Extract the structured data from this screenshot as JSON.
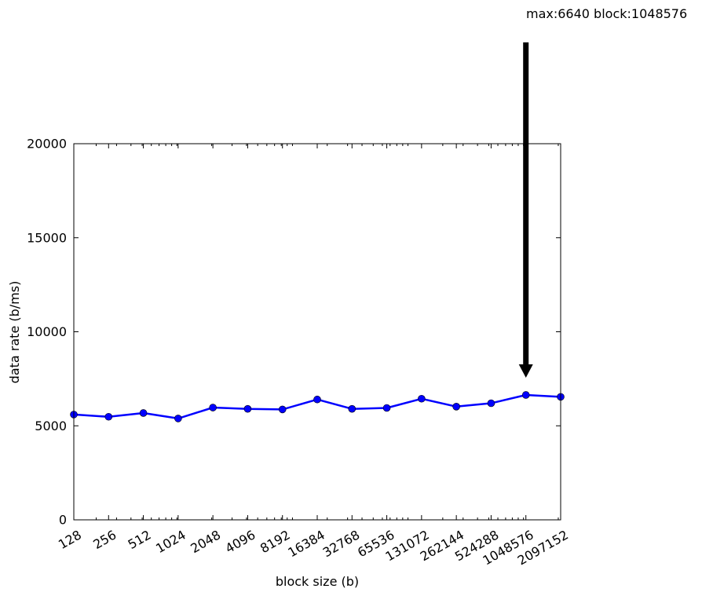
{
  "chart_data": {
    "type": "line",
    "x_scale": "log2",
    "categories": [
      "128",
      "256",
      "512",
      "1024",
      "2048",
      "4096",
      "8192",
      "16384",
      "32768",
      "65536",
      "131072",
      "262144",
      "524288",
      "1048576",
      "2097152"
    ],
    "x": [
      128,
      256,
      512,
      1024,
      2048,
      4096,
      8192,
      16384,
      32768,
      65536,
      131072,
      262144,
      524288,
      1048576,
      2097152
    ],
    "series": [
      {
        "name": "",
        "color": "#0000ff",
        "values": [
          5600,
          5480,
          5680,
          5390,
          5970,
          5900,
          5870,
          6400,
          5900,
          5950,
          6440,
          6020,
          6200,
          6640,
          6540
        ]
      }
    ],
    "y_ticks": [
      "0",
      "5000",
      "10000",
      "15000",
      "20000"
    ],
    "ylim": [
      0,
      20000
    ],
    "xlabel": "block size (b)",
    "ylabel": "data rate (b/ms)",
    "grid": false,
    "annotation": {
      "text": "max:6640 block:1048576",
      "x": 1048576,
      "y": 6640
    }
  }
}
